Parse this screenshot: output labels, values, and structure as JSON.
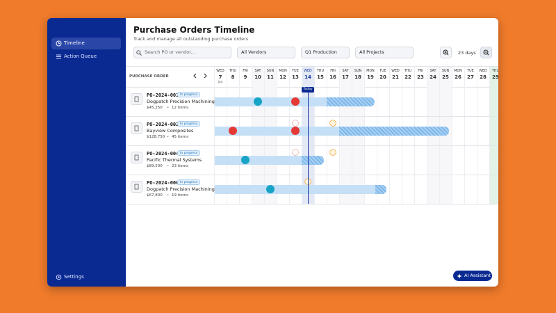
{
  "sidebar": {
    "nav": [
      "Timeline",
      "Action Queue"
    ],
    "settings": "Settings"
  },
  "header": {
    "title": "Purchase Orders Timeline",
    "subtitle": "Track and manage all outstanding purchase orders"
  },
  "toolbar": {
    "search_placeholder": "Search PO or vendor...",
    "filters": [
      "All Vendors",
      "Q1 Production",
      "All Projects"
    ],
    "zoom_label": "23 days"
  },
  "timeline": {
    "column_header": "PURCHASE ORDER",
    "today_label": "Today",
    "item_separator": "•",
    "days": [
      {
        "weekday": "WED",
        "day": "7",
        "month": "Jan"
      },
      {
        "weekday": "THU",
        "day": "8"
      },
      {
        "weekday": "FRI",
        "day": "9"
      },
      {
        "weekday": "SAT",
        "day": "10"
      },
      {
        "weekday": "SUN",
        "day": "11"
      },
      {
        "weekday": "MON",
        "day": "12"
      },
      {
        "weekday": "TUE",
        "day": "13"
      },
      {
        "weekday": "WED",
        "day": "14"
      },
      {
        "weekday": "THU",
        "day": "15"
      },
      {
        "weekday": "FRI",
        "day": "16"
      },
      {
        "weekday": "SAT",
        "day": "17"
      },
      {
        "weekday": "SUN",
        "day": "18"
      },
      {
        "weekday": "MON",
        "day": "19"
      },
      {
        "weekday": "TUE",
        "day": "20"
      },
      {
        "weekday": "WED",
        "day": "21"
      },
      {
        "weekday": "THU",
        "day": "22"
      },
      {
        "weekday": "FRI",
        "day": "23"
      },
      {
        "weekday": "SAT",
        "day": "24"
      },
      {
        "weekday": "SUN",
        "day": "25"
      },
      {
        "weekday": "MON",
        "day": "26"
      },
      {
        "weekday": "TUE",
        "day": "27"
      },
      {
        "weekday": "WED",
        "day": "28"
      },
      {
        "weekday": "THU",
        "day": "29"
      }
    ]
  },
  "orders": [
    {
      "id": "PO-2024-001",
      "status": "In progress",
      "vendor": "Dogpatch Precision Machining",
      "amount": "$45,250",
      "items": "12 items"
    },
    {
      "id": "PO-2024-002",
      "status": "In progress",
      "vendor": "Bayview Composites",
      "amount": "$128,750",
      "items": "45 items"
    },
    {
      "id": "PO-2024-004",
      "status": "In progress",
      "vendor": "Pacific Thermal Systems",
      "amount": "$89,500",
      "items": "23 items"
    },
    {
      "id": "PO-2024-006",
      "status": "In progress",
      "vendor": "Dogpatch Precision Machining",
      "amount": "$67,800",
      "items": "19 items"
    }
  ],
  "assistant": "AI Assistant"
}
